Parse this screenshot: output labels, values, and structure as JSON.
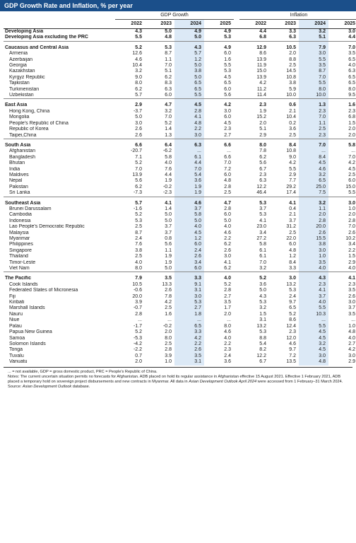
{
  "title": "GDP Growth Rate and Inflation, % per year",
  "group_gdp": "GDP Growth",
  "group_inflation": "Inflation",
  "years": [
    "2022",
    "2023",
    "2024",
    "2025",
    "2022",
    "2023",
    "2024",
    "2025"
  ],
  "sections": [
    {
      "rows": [
        {
          "label": "Developing Asia",
          "bold": true,
          "values": [
            "4.3",
            "5.0",
            "4.9",
            "4.9",
            "4.4",
            "3.3",
            "3.2",
            "3.0"
          ]
        },
        {
          "label": "Developing Asia excluding the PRC",
          "bold": true,
          "values": [
            "5.5",
            "4.8",
            "5.0",
            "5.3",
            "6.8",
            "6.3",
            "5.1",
            "4.4"
          ]
        }
      ]
    },
    {
      "rows": [
        {
          "label": "Caucasus and Central Asia",
          "bold": true,
          "values": [
            "5.2",
            "5.3",
            "4.3",
            "4.9",
            "12.9",
            "10.5",
            "7.9",
            "7.0"
          ]
        },
        {
          "label": "Armenia",
          "values": [
            "12.6",
            "8.7",
            "5.7",
            "6.0",
            "8.6",
            "2.0",
            "3.0",
            "3.5"
          ]
        },
        {
          "label": "Azerbaijan",
          "values": [
            "4.6",
            "1.1",
            "1.2",
            "1.6",
            "13.9",
            "8.8",
            "5.5",
            "6.5"
          ]
        },
        {
          "label": "Georgia",
          "values": [
            "10.4",
            "7.0",
            "5.0",
            "5.5",
            "11.9",
            "2.5",
            "3.5",
            "4.0"
          ]
        },
        {
          "label": "Kazakhstan",
          "values": [
            "3.2",
            "5.1",
            "3.8",
            "5.3",
            "15.0",
            "14.5",
            "8.7",
            "6.3"
          ]
        },
        {
          "label": "Kyrgyz Republic",
          "values": [
            "9.0",
            "6.2",
            "5.0",
            "4.5",
            "13.9",
            "10.8",
            "7.0",
            "6.5"
          ]
        },
        {
          "label": "Tajikistan",
          "values": [
            "8.0",
            "8.3",
            "6.5",
            "6.5",
            "4.2",
            "3.8",
            "5.5",
            "6.5"
          ]
        },
        {
          "label": "Turkmenistan",
          "values": [
            "6.2",
            "6.3",
            "6.5",
            "6.0",
            "11.2",
            "5.9",
            "8.0",
            "8.0"
          ]
        },
        {
          "label": "Uzbekistan",
          "values": [
            "5.7",
            "6.0",
            "5.5",
            "5.6",
            "11.4",
            "10.0",
            "10.0",
            "9.5"
          ]
        }
      ]
    },
    {
      "rows": [
        {
          "label": "East Asia",
          "bold": true,
          "values": [
            "2.9",
            "4.7",
            "4.5",
            "4.2",
            "2.3",
            "0.6",
            "1.3",
            "1.6"
          ]
        },
        {
          "label": "Hong Kong, China",
          "values": [
            "-3.7",
            "3.2",
            "2.8",
            "3.0",
            "1.9",
            "2.1",
            "2.3",
            "2.3"
          ]
        },
        {
          "label": "Mongolia",
          "values": [
            "5.0",
            "7.0",
            "4.1",
            "6.0",
            "15.2",
            "10.4",
            "7.0",
            "6.8"
          ]
        },
        {
          "label": "People's Republic of China",
          "values": [
            "3.0",
            "5.2",
            "4.8",
            "4.5",
            "2.0",
            "0.2",
            "1.1",
            "1.5"
          ]
        },
        {
          "label": "Republic of Korea",
          "values": [
            "2.6",
            "1.4",
            "2.2",
            "2.3",
            "5.1",
            "3.6",
            "2.5",
            "2.0"
          ]
        },
        {
          "label": "Taipei,China",
          "values": [
            "2.6",
            "1.3",
            "3.0",
            "2.7",
            "2.9",
            "2.5",
            "2.3",
            "2.0"
          ]
        }
      ]
    },
    {
      "rows": [
        {
          "label": "South Asia",
          "bold": true,
          "values": [
            "6.6",
            "6.4",
            "6.3",
            "6.6",
            "8.0",
            "8.4",
            "7.0",
            "5.8"
          ]
        },
        {
          "label": "Afghanistan",
          "values": [
            "-20.7",
            "-6.2",
            "...",
            "...",
            "7.8",
            "10.8",
            "...",
            "..."
          ]
        },
        {
          "label": "Bangladesh",
          "values": [
            "7.1",
            "5.8",
            "6.1",
            "6.6",
            "6.2",
            "9.0",
            "8.4",
            "7.0"
          ]
        },
        {
          "label": "Bhutan",
          "values": [
            "5.2",
            "4.0",
            "4.4",
            "7.0",
            "5.6",
            "4.2",
            "4.5",
            "4.2"
          ]
        },
        {
          "label": "India",
          "values": [
            "7.0",
            "7.6",
            "7.0",
            "7.2",
            "6.7",
            "5.5",
            "4.6",
            "4.5"
          ]
        },
        {
          "label": "Maldives",
          "values": [
            "13.9",
            "4.4",
            "5.4",
            "6.0",
            "2.3",
            "2.9",
            "3.2",
            "2.5"
          ]
        },
        {
          "label": "Nepal",
          "values": [
            "5.6",
            "1.9",
            "3.6",
            "4.8",
            "6.3",
            "7.7",
            "6.5",
            "6.0"
          ]
        },
        {
          "label": "Pakistan",
          "values": [
            "6.2",
            "-0.2",
            "1.9",
            "2.8",
            "12.2",
            "29.2",
            "25.0",
            "15.0"
          ]
        },
        {
          "label": "Sri Lanka",
          "values": [
            "-7.3",
            "-2.3",
            "1.9",
            "2.5",
            "46.4",
            "17.4",
            "7.5",
            "5.5"
          ]
        }
      ]
    },
    {
      "rows": [
        {
          "label": "Southeast Asia",
          "bold": true,
          "values": [
            "5.7",
            "4.1",
            "4.6",
            "4.7",
            "5.3",
            "4.1",
            "3.2",
            "3.0"
          ]
        },
        {
          "label": "Brunei Darussalam",
          "values": [
            "-1.6",
            "1.4",
            "3.7",
            "2.8",
            "3.7",
            "0.4",
            "1.1",
            "1.0"
          ]
        },
        {
          "label": "Cambodia",
          "values": [
            "5.2",
            "5.0",
            "5.8",
            "6.0",
            "5.3",
            "2.1",
            "2.0",
            "2.0"
          ]
        },
        {
          "label": "Indonesia",
          "values": [
            "5.3",
            "5.0",
            "5.0",
            "5.0",
            "4.1",
            "3.7",
            "2.8",
            "2.8"
          ]
        },
        {
          "label": "Lao People's Democratic Republic",
          "values": [
            "2.5",
            "3.7",
            "4.0",
            "4.0",
            "23.0",
            "31.2",
            "20.0",
            "7.0"
          ]
        },
        {
          "label": "Malaysia",
          "values": [
            "8.7",
            "3.7",
            "4.5",
            "4.6",
            "3.4",
            "2.5",
            "2.6",
            "2.6"
          ]
        },
        {
          "label": "Myanmar",
          "values": [
            "2.4",
            "0.8",
            "1.2",
            "2.2",
            "27.2",
            "22.0",
            "15.5",
            "10.2"
          ]
        },
        {
          "label": "Philippines",
          "values": [
            "7.6",
            "5.6",
            "6.0",
            "6.2",
            "5.8",
            "6.0",
            "3.8",
            "3.4"
          ]
        },
        {
          "label": "Singapore",
          "values": [
            "3.8",
            "1.1",
            "2.4",
            "2.6",
            "6.1",
            "4.8",
            "3.0",
            "2.2"
          ]
        },
        {
          "label": "Thailand",
          "values": [
            "2.5",
            "1.9",
            "2.6",
            "3.0",
            "6.1",
            "1.2",
            "1.0",
            "1.5"
          ]
        },
        {
          "label": "Timor-Leste",
          "values": [
            "4.0",
            "1.9",
            "3.4",
            "4.1",
            "7.0",
            "8.4",
            "3.5",
            "2.9"
          ]
        },
        {
          "label": "Viet Nam",
          "values": [
            "8.0",
            "5.0",
            "6.0",
            "6.2",
            "3.2",
            "3.3",
            "4.0",
            "4.0"
          ]
        }
      ]
    },
    {
      "rows": [
        {
          "label": "The Pacific",
          "bold": true,
          "values": [
            "7.9",
            "3.5",
            "3.3",
            "4.0",
            "5.2",
            "3.0",
            "4.3",
            "4.1"
          ]
        },
        {
          "label": "Cook Islands",
          "values": [
            "10.5",
            "13.3",
            "9.1",
            "5.2",
            "3.6",
            "13.2",
            "2.3",
            "2.3"
          ]
        },
        {
          "label": "Federated States of Micronesia",
          "values": [
            "-0.6",
            "2.6",
            "3.1",
            "2.8",
            "5.0",
            "5.3",
            "4.1",
            "3.5"
          ]
        },
        {
          "label": "Fiji",
          "values": [
            "20.0",
            "7.8",
            "3.0",
            "2.7",
            "4.3",
            "2.4",
            "3.7",
            "2.6"
          ]
        },
        {
          "label": "Kiribati",
          "values": [
            "3.9",
            "4.2",
            "5.3",
            "3.5",
            "5.3",
            "9.7",
            "4.0",
            "3.0"
          ]
        },
        {
          "label": "Marshall Islands",
          "values": [
            "-0.7",
            "2.5",
            "2.7",
            "1.7",
            "3.2",
            "6.5",
            "5.5",
            "3.7"
          ]
        },
        {
          "label": "Nauru",
          "values": [
            "2.8",
            "1.6",
            "1.8",
            "2.0",
            "1.5",
            "5.2",
            "10.3",
            "3.5"
          ]
        },
        {
          "label": "Niue",
          "values": [
            "...",
            "...",
            "...",
            "...",
            "3.1",
            "8.6",
            "...",
            "..."
          ]
        },
        {
          "label": "Palau",
          "values": [
            "-1.7",
            "-0.2",
            "6.5",
            "8.0",
            "13.2",
            "12.4",
            "5.5",
            "1.0"
          ]
        },
        {
          "label": "Papua New Guinea",
          "values": [
            "5.2",
            "2.0",
            "3.3",
            "4.6",
            "5.3",
            "2.3",
            "4.5",
            "4.8"
          ]
        },
        {
          "label": "Samoa",
          "values": [
            "-5.3",
            "8.0",
            "4.2",
            "4.0",
            "8.8",
            "12.0",
            "4.5",
            "4.0"
          ]
        },
        {
          "label": "Solomon Islands",
          "values": [
            "-4.2",
            "2.5",
            "2.2",
            "2.2",
            "5.4",
            "4.6",
            "3.2",
            "2.7"
          ]
        },
        {
          "label": "Tonga",
          "values": [
            "-2.2",
            "2.8",
            "2.6",
            "2.3",
            "8.2",
            "9.7",
            "4.5",
            "4.2"
          ]
        },
        {
          "label": "Tuvalu",
          "values": [
            "0.7",
            "3.9",
            "3.5",
            "2.4",
            "12.2",
            "7.2",
            "3.0",
            "3.0"
          ]
        },
        {
          "label": "Vanuatu",
          "values": [
            "2.0",
            "1.0",
            "3.1",
            "3.6",
            "6.7",
            "13.5",
            "4.8",
            "2.9"
          ]
        }
      ]
    }
  ],
  "notes": {
    "abbrev": "... = not available, GDP = gross domestic product, PRC = People's Republic of China.",
    "line1": "Notes: The current uncertain situation permits no forecasts for Afghanistan. ADB placed on hold its regular assistance in Afghanistan effective 15 August 2021. Effective 1 February 2021, ADB placed a temporary hold on sovereign project disbursements and new contracts in Myanmar. All data in",
    "line2_italic": "Asian Development Outlook April 2024",
    "line2_rest": " were accessed from 1 February–31 March 2024.",
    "source_prefix": "Source: ",
    "source_italic": "Asian Development Outlook",
    "source_rest": " database."
  }
}
